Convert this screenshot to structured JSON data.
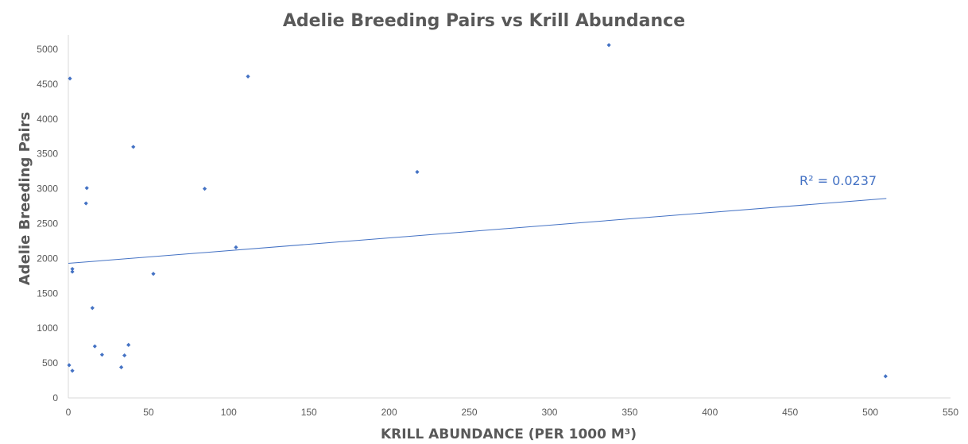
{
  "chart_data": {
    "type": "scatter",
    "title": "Adelie Breeding Pairs vs Krill Abundance",
    "xlabel": "KRILL ABUNDANCE (PER 1000 M³)",
    "ylabel": "Adelie Breeding Pairs",
    "xlim": [
      0,
      550
    ],
    "ylim": [
      0,
      5000
    ],
    "xticks": [
      0,
      50,
      100,
      150,
      200,
      250,
      300,
      350,
      400,
      450,
      500,
      550
    ],
    "yticks": [
      0,
      500,
      1000,
      1500,
      2000,
      2500,
      3000,
      3500,
      4000,
      4500,
      5000
    ],
    "grid": false,
    "legend": "none",
    "series": [
      {
        "color": "#4472C4",
        "points": [
          {
            "x": 1,
            "y": 4580
          },
          {
            "x": 0.5,
            "y": 470
          },
          {
            "x": 2.5,
            "y": 1850
          },
          {
            "x": 2.5,
            "y": 1810
          },
          {
            "x": 2.5,
            "y": 390
          },
          {
            "x": 11.5,
            "y": 3010
          },
          {
            "x": 11,
            "y": 2790
          },
          {
            "x": 15,
            "y": 1290
          },
          {
            "x": 16.5,
            "y": 740
          },
          {
            "x": 21,
            "y": 620
          },
          {
            "x": 33,
            "y": 440
          },
          {
            "x": 35,
            "y": 610
          },
          {
            "x": 37.5,
            "y": 760
          },
          {
            "x": 40.5,
            "y": 3600
          },
          {
            "x": 53,
            "y": 1780
          },
          {
            "x": 85,
            "y": 3000
          },
          {
            "x": 104.5,
            "y": 2160
          },
          {
            "x": 112,
            "y": 4610
          },
          {
            "x": 217.5,
            "y": 3240
          },
          {
            "x": 337,
            "y": 5060
          },
          {
            "x": 509.5,
            "y": 310
          }
        ]
      }
    ],
    "trendline": {
      "type": "linear",
      "x_range": [
        0,
        510
      ],
      "start_y": 1930,
      "end_y": 2860,
      "label": "R² = 0.0237",
      "color": "#4472C4"
    },
    "axis_color": "#D9D9D9",
    "text_color": "#595959"
  }
}
